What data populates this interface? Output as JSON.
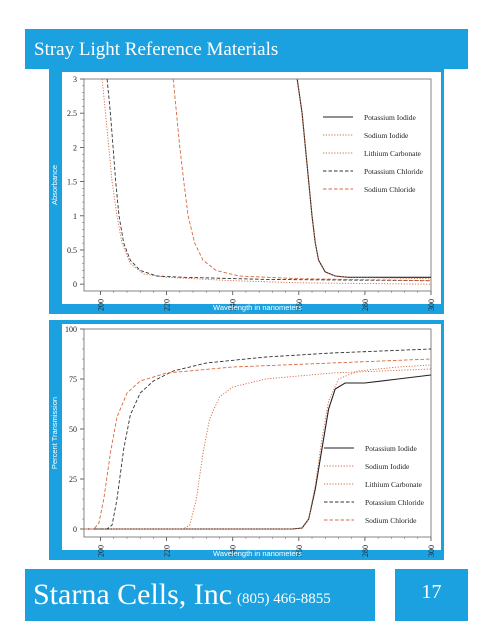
{
  "header": {
    "title": "Stray Light Reference Materials"
  },
  "footer": {
    "company": "Starna Cells, Inc",
    "phone": "(805) 466-8855",
    "page_number": "17"
  },
  "colors": {
    "accent": "#1ba1df",
    "potassium_iodide": "#222222",
    "sodium_iodide": "#d9683c",
    "lithium_carbonate": "#d9683c",
    "potassium_chloride": "#333333",
    "sodium_chloride": "#d9683c"
  },
  "chart_data": [
    {
      "type": "line",
      "title": "",
      "xlabel": "Wavelength in nanometers",
      "ylabel": "Absorbance",
      "xlim": [
        195,
        300
      ],
      "ylim": [
        -0.1,
        3
      ],
      "x_ticks": [
        "200",
        "220",
        "240",
        "260",
        "280",
        "300"
      ],
      "y_ticks": [
        "0",
        "0.5",
        "1",
        "1.5",
        "2",
        "2.5",
        "3"
      ],
      "legend_position": "top-right",
      "series": [
        {
          "name": "Potassium Iodide",
          "style": "solid",
          "color": "#222222",
          "points": [
            [
              259.5,
              3.0
            ],
            [
              261,
              2.5
            ],
            [
              262,
              2.0
            ],
            [
              263,
              1.5
            ],
            [
              264,
              1.0
            ],
            [
              265,
              0.6
            ],
            [
              266,
              0.35
            ],
            [
              268,
              0.18
            ],
            [
              271,
              0.12
            ],
            [
              275,
              0.1
            ],
            [
              300,
              0.1
            ]
          ]
        },
        {
          "name": "Sodium Iodide",
          "style": "dotted",
          "color": "#d9683c",
          "points": [
            [
              259.5,
              3.0
            ],
            [
              261,
              2.5
            ],
            [
              262,
              2.0
            ],
            [
              263,
              1.5
            ],
            [
              264,
              1.0
            ],
            [
              265,
              0.6
            ],
            [
              266,
              0.35
            ],
            [
              268,
              0.18
            ],
            [
              271,
              0.12
            ],
            [
              275,
              0.1
            ],
            [
              300,
              0.08
            ]
          ]
        },
        {
          "name": "Lithium Carbonate",
          "style": "dotted",
          "color": "#d9683c",
          "points": [
            [
              200.5,
              3.0
            ],
            [
              201.5,
              2.5
            ],
            [
              202.5,
              2.0
            ],
            [
              203.5,
              1.5
            ],
            [
              205,
              1.0
            ],
            [
              206.5,
              0.6
            ],
            [
              209,
              0.3
            ],
            [
              213,
              0.15
            ],
            [
              220,
              0.1
            ],
            [
              240,
              0.05
            ],
            [
              260,
              0.02
            ],
            [
              300,
              0.0
            ]
          ]
        },
        {
          "name": "Potassium Chloride",
          "style": "dashed",
          "color": "#333333",
          "points": [
            [
              202,
              3.0
            ],
            [
              203,
              2.5
            ],
            [
              203.8,
              2.0
            ],
            [
              204.6,
              1.5
            ],
            [
              205.6,
              1.0
            ],
            [
              207,
              0.6
            ],
            [
              209,
              0.35
            ],
            [
              212,
              0.2
            ],
            [
              217,
              0.12
            ],
            [
              225,
              0.1
            ],
            [
              250,
              0.07
            ],
            [
              300,
              0.05
            ]
          ]
        },
        {
          "name": "Sodium Chloride",
          "style": "dashed",
          "color": "#d9683c",
          "points": [
            [
              222,
              3.0
            ],
            [
              223,
              2.5
            ],
            [
              224,
              2.0
            ],
            [
              225.2,
              1.5
            ],
            [
              226.5,
              1.0
            ],
            [
              228.5,
              0.6
            ],
            [
              231,
              0.35
            ],
            [
              235,
              0.2
            ],
            [
              242,
              0.12
            ],
            [
              260,
              0.08
            ],
            [
              300,
              0.05
            ]
          ]
        }
      ]
    },
    {
      "type": "line",
      "title": "",
      "xlabel": "Wavelength in nanometers",
      "ylabel": "Percent Transmission",
      "xlim": [
        195,
        300
      ],
      "ylim": [
        -4,
        100
      ],
      "x_ticks": [
        "200",
        "220",
        "240",
        "260",
        "280",
        "300"
      ],
      "y_ticks": [
        "0",
        "25",
        "50",
        "75",
        "100"
      ],
      "legend_position": "bottom-right",
      "series": [
        {
          "name": "Potassium Iodide",
          "style": "solid",
          "color": "#222222",
          "points": [
            [
              195,
              0
            ],
            [
              258,
              0
            ],
            [
              261,
              0.5
            ],
            [
              263,
              5
            ],
            [
              265,
              20
            ],
            [
              267,
              40
            ],
            [
              269,
              60
            ],
            [
              271,
              70
            ],
            [
              274,
              73
            ],
            [
              280,
              73
            ],
            [
              290,
              75
            ],
            [
              300,
              77
            ]
          ]
        },
        {
          "name": "Sodium Iodide",
          "style": "dotted",
          "color": "#d9683c",
          "points": [
            [
              195,
              0
            ],
            [
              258,
              0
            ],
            [
              261,
              0.5
            ],
            [
              263,
              5
            ],
            [
              265,
              22
            ],
            [
              267,
              45
            ],
            [
              269,
              64
            ],
            [
              272,
              75
            ],
            [
              278,
              79
            ],
            [
              290,
              81
            ],
            [
              300,
              82
            ]
          ]
        },
        {
          "name": "Lithium Carbonate",
          "style": "dotted",
          "color": "#d9683c",
          "points": [
            [
              195,
              0
            ],
            [
              225,
              0
            ],
            [
              227,
              2
            ],
            [
              229,
              15
            ],
            [
              231,
              38
            ],
            [
              233,
              55
            ],
            [
              236,
              66
            ],
            [
              240,
              71
            ],
            [
              250,
              75
            ],
            [
              270,
              78
            ],
            [
              300,
              80
            ]
          ]
        },
        {
          "name": "Potassium Chloride",
          "style": "dashed",
          "color": "#333333",
          "points": [
            [
              195,
              0
            ],
            [
              202,
              0
            ],
            [
              203.5,
              2
            ],
            [
              205,
              15
            ],
            [
              207,
              40
            ],
            [
              209,
              57
            ],
            [
              212,
              68
            ],
            [
              216,
              74
            ],
            [
              222,
              79
            ],
            [
              232,
              83
            ],
            [
              250,
              86
            ],
            [
              270,
              88
            ],
            [
              300,
              90
            ]
          ]
        },
        {
          "name": "Sodium Chloride",
          "style": "dashed",
          "color": "#d9683c",
          "points": [
            [
              195,
              0
            ],
            [
              198,
              0
            ],
            [
              199.5,
              3
            ],
            [
              201,
              15
            ],
            [
              203,
              38
            ],
            [
              205,
              56
            ],
            [
              208,
              68
            ],
            [
              212,
              74
            ],
            [
              220,
              78
            ],
            [
              240,
              81
            ],
            [
              270,
              83
            ],
            [
              300,
              85
            ]
          ]
        }
      ]
    }
  ]
}
